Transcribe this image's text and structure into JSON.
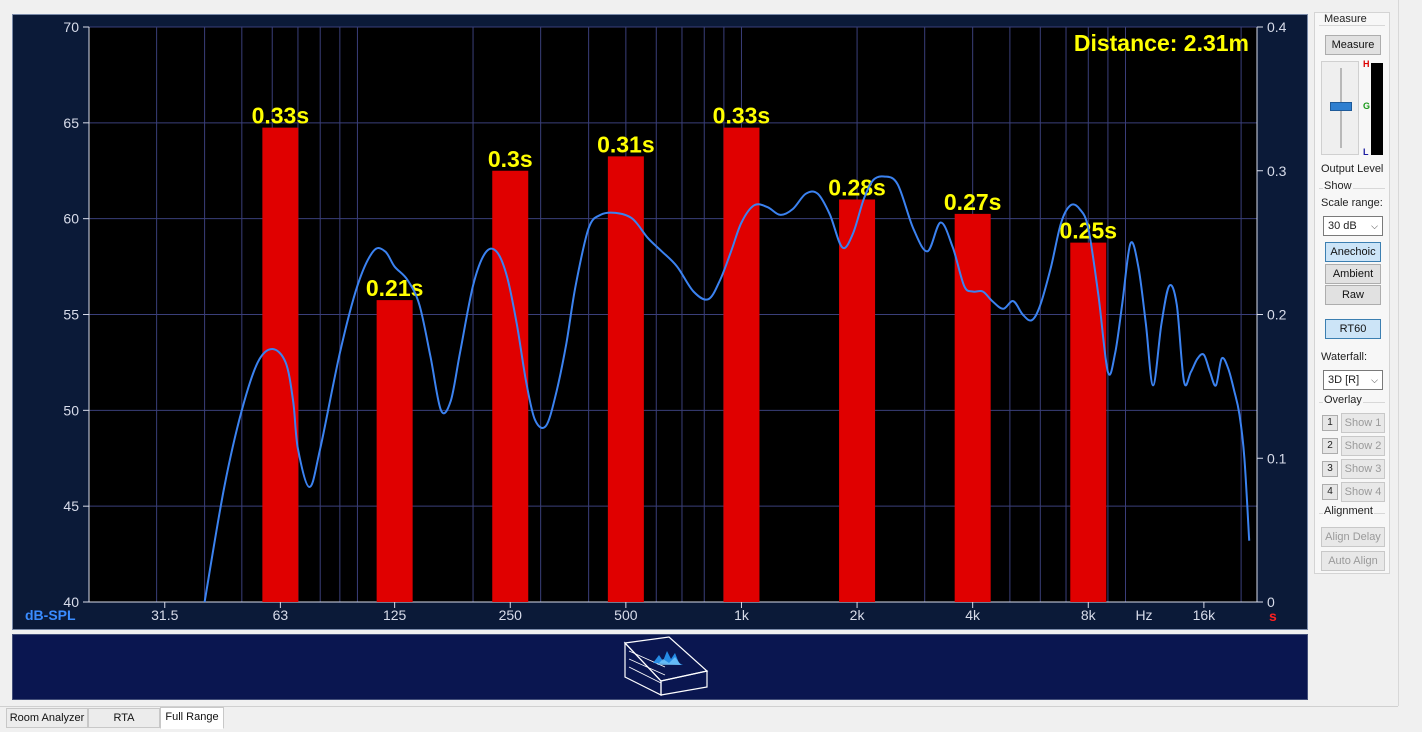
{
  "chart": {
    "left_axis_label": "dB-SPL",
    "right_axis_unit": "s",
    "hz_label": "Hz",
    "distance_text": "Distance: 2.31m",
    "colors": {
      "background": "#000000",
      "frame": "#0b1a38",
      "grid": "#3a3f7a",
      "bar": "#e00000",
      "curve": "#3b82f0",
      "bar_label": "#ffff00",
      "axis_label_blue": "#3a8cff",
      "axis_text": "#d8dcea",
      "unit_red": "#ff2020"
    }
  },
  "chart_data": {
    "type": "bar",
    "xscale": "log",
    "xlim": [
      20,
      22000
    ],
    "x_ticks": [
      {
        "value": 31.5,
        "label": "31.5"
      },
      {
        "value": 63,
        "label": "63"
      },
      {
        "value": 125,
        "label": "125"
      },
      {
        "value": 250,
        "label": "250"
      },
      {
        "value": 500,
        "label": "500"
      },
      {
        "value": 1000,
        "label": "1k"
      },
      {
        "value": 2000,
        "label": "2k"
      },
      {
        "value": 4000,
        "label": "4k"
      },
      {
        "value": 8000,
        "label": "8k"
      },
      {
        "value": 16000,
        "label": "16k"
      }
    ],
    "left_axis": {
      "label": "dB-SPL",
      "ylim": [
        40,
        70
      ],
      "ticks": [
        40,
        45,
        50,
        55,
        60,
        65,
        70
      ]
    },
    "right_axis": {
      "unit": "s",
      "ylim": [
        0,
        0.4
      ],
      "ticks": [
        0,
        0.1,
        0.2,
        0.3,
        0.4
      ],
      "tick_labels": [
        "0",
        "0.1",
        "0.2",
        "0.3",
        "0.4"
      ]
    },
    "bars": {
      "axis": "right",
      "categories": [
        63,
        125,
        250,
        500,
        1000,
        2000,
        4000,
        8000
      ],
      "values": [
        0.33,
        0.21,
        0.3,
        0.31,
        0.33,
        0.28,
        0.27,
        0.25
      ],
      "labels": [
        "0.33s",
        "0.21s",
        "0.3s",
        "0.31s",
        "0.33s",
        "0.28s",
        "0.27s",
        "0.25s"
      ]
    },
    "line": {
      "axis": "left",
      "x": [
        40,
        45,
        50,
        55,
        60,
        65,
        68,
        70,
        75,
        80,
        90,
        100,
        110,
        118,
        125,
        135,
        145,
        155,
        165,
        175,
        185,
        200,
        215,
        230,
        245,
        260,
        275,
        290,
        310,
        330,
        350,
        370,
        400,
        430,
        470,
        520,
        570,
        620,
        680,
        750,
        820,
        880,
        940,
        1000,
        1080,
        1170,
        1260,
        1360,
        1470,
        1580,
        1700,
        1830,
        1950,
        2080,
        2200,
        2350,
        2550,
        2800,
        3050,
        3300,
        3550,
        3800,
        4000,
        4250,
        4500,
        4800,
        5100,
        5400,
        5700,
        6000,
        6400,
        6800,
        7200,
        7600,
        8000,
        8500,
        9000,
        9400,
        9800,
        10300,
        10800,
        11300,
        11800,
        12400,
        13000,
        13600,
        14200,
        14800,
        15400,
        16000,
        16600,
        17200,
        17800,
        18500,
        19200,
        19800,
        20400,
        21000
      ],
      "y": [
        40,
        46,
        50,
        52.5,
        53.2,
        52.5,
        50.5,
        48,
        46,
        48,
        53,
        56.5,
        58.3,
        58.3,
        57.5,
        56.8,
        55.5,
        52.8,
        50,
        50.5,
        53,
        56.5,
        58.2,
        58.3,
        57,
        54.5,
        51.5,
        49.5,
        49.2,
        51,
        53.5,
        56.5,
        59.5,
        60.2,
        60.3,
        60,
        59,
        58.3,
        57.5,
        56.2,
        55.8,
        56.8,
        58.3,
        59.8,
        60.7,
        60.6,
        60.2,
        60.5,
        61.3,
        61.3,
        60.2,
        58.5,
        59.2,
        61,
        62,
        62.2,
        61.8,
        59.5,
        58.3,
        59.8,
        58.5,
        56.5,
        56.2,
        56.2,
        55.7,
        55.3,
        55.7,
        55,
        54.7,
        55.5,
        57.5,
        59.8,
        60.7,
        60.5,
        59.5,
        56,
        52,
        53,
        55.5,
        58.7,
        57.5,
        54.5,
        51.3,
        54.5,
        56.5,
        55.5,
        51.5,
        52,
        52.7,
        52.9,
        52,
        51.3,
        52.7,
        52.2,
        51,
        49.8,
        47.5,
        43.2
      ]
    }
  },
  "right_panel": {
    "measure_group": "Measure",
    "measure_button": "Measure",
    "level_marks": {
      "high": "H",
      "good": "G",
      "low": "L"
    },
    "output_level": "Output Level",
    "level_fraction": 0.55,
    "show_group": "Show",
    "scale_range_label": "Scale range:",
    "scale_range_value": "30 dB",
    "anechoic_button": "Anechoic",
    "ambient_button": "Ambient",
    "raw_button": "Raw",
    "rt60_button": "RT60",
    "waterfall_label": "Waterfall:",
    "waterfall_value": "3D [R]",
    "overlay_group": "Overlay",
    "overlay_items": [
      {
        "num": "1",
        "label": "Show 1"
      },
      {
        "num": "2",
        "label": "Show 2"
      },
      {
        "num": "3",
        "label": "Show 3"
      },
      {
        "num": "4",
        "label": "Show 4"
      }
    ],
    "alignment_group": "Alignment",
    "align_delay_button": "Align Delay",
    "auto_align_button": "Auto Align"
  },
  "tabs": [
    "Room Analyzer",
    "RTA",
    "Full Range"
  ],
  "active_tab": "Full Range"
}
